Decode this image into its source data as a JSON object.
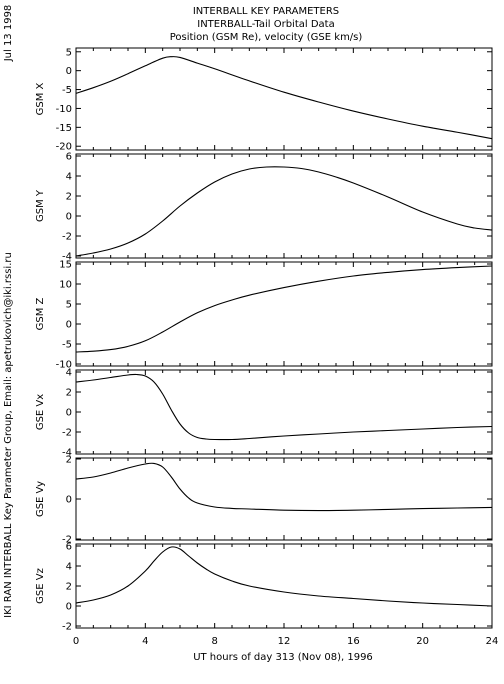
{
  "header": {
    "line1": "INTERBALL KEY PARAMETERS",
    "line2": "INTERBALL-Tail Orbital Data",
    "line3": "Position (GSM Re), velocity (GSE km/s)"
  },
  "side": {
    "date": "Jul 13 1998",
    "credit": "IKI RAN INTERBALL Key Parameter Group, Email: apetrukovich@iki.rssi.ru"
  },
  "x_axis": {
    "label": "UT hours of day 313 (Nov 08), 1996",
    "range": [
      0,
      24
    ],
    "ticks": [
      0,
      4,
      8,
      12,
      16,
      20,
      24
    ],
    "minor_step": 1
  },
  "chart_data": [
    {
      "type": "line",
      "ylabel": "GSM X",
      "ylim": [
        -21,
        6
      ],
      "yticks": [
        5,
        0,
        -5,
        -10,
        -15,
        -20
      ],
      "x": [
        0,
        1,
        2,
        3,
        4,
        5,
        5.5,
        6,
        7,
        8,
        10,
        12,
        14,
        16,
        18,
        20,
        22,
        24
      ],
      "values": [
        -6,
        -4.5,
        -2.8,
        -0.8,
        1.3,
        3.3,
        3.7,
        3.5,
        2,
        0.5,
        -2.7,
        -5.7,
        -8.3,
        -10.7,
        -12.8,
        -14.7,
        -16.3,
        -18
      ]
    },
    {
      "type": "line",
      "ylabel": "GSM Y",
      "ylim": [
        -4.2,
        6.2
      ],
      "yticks": [
        6,
        4,
        2,
        0,
        -2,
        -4
      ],
      "x": [
        0,
        1,
        2,
        3,
        4,
        5,
        6,
        7,
        8,
        9,
        10,
        11,
        12,
        13,
        14,
        15,
        16,
        18,
        20,
        22,
        23,
        24
      ],
      "values": [
        -4,
        -3.7,
        -3.3,
        -2.7,
        -1.8,
        -0.5,
        1,
        2.3,
        3.4,
        4.2,
        4.7,
        4.9,
        4.9,
        4.75,
        4.4,
        3.9,
        3.3,
        1.9,
        0.4,
        -0.8,
        -1.2,
        -1.4
      ]
    },
    {
      "type": "line",
      "ylabel": "GSM Z",
      "ylim": [
        -10.5,
        15.5
      ],
      "yticks": [
        15,
        10,
        5,
        0,
        -5,
        -10
      ],
      "x": [
        0,
        1,
        2,
        3,
        4,
        5,
        6,
        7,
        8,
        9,
        10,
        12,
        14,
        16,
        18,
        20,
        22,
        24
      ],
      "values": [
        -7,
        -6.8,
        -6.4,
        -5.6,
        -4.2,
        -2,
        0.5,
        2.8,
        4.6,
        6,
        7.2,
        9.1,
        10.7,
        12,
        12.9,
        13.6,
        14.1,
        14.5
      ]
    },
    {
      "type": "line",
      "ylabel": "GSE Vx",
      "ylim": [
        -4.2,
        4.2
      ],
      "yticks": [
        4,
        2,
        0,
        -2,
        -4
      ],
      "x": [
        0,
        1,
        2,
        3,
        3.5,
        4,
        4.5,
        5,
        5.5,
        6,
        6.5,
        7,
        7.5,
        8,
        9,
        10,
        12,
        14,
        16,
        18,
        20,
        22,
        24
      ],
      "values": [
        3,
        3.2,
        3.45,
        3.7,
        3.75,
        3.6,
        3,
        1.8,
        0.2,
        -1.2,
        -2.1,
        -2.55,
        -2.7,
        -2.75,
        -2.75,
        -2.65,
        -2.4,
        -2.2,
        -2,
        -1.85,
        -1.7,
        -1.55,
        -1.45
      ]
    },
    {
      "type": "line",
      "ylabel": "GSE Vy",
      "ylim": [
        -2.05,
        2.05
      ],
      "yticks": [
        2,
        0,
        -2
      ],
      "x": [
        0,
        1,
        2,
        3,
        4,
        4.5,
        5,
        5.5,
        6,
        6.5,
        7,
        8,
        9,
        10,
        12,
        14,
        16,
        18,
        20,
        22,
        24
      ],
      "values": [
        1,
        1.1,
        1.3,
        1.55,
        1.75,
        1.78,
        1.6,
        1.1,
        0.5,
        0.05,
        -0.2,
        -0.4,
        -0.47,
        -0.5,
        -0.56,
        -0.58,
        -0.56,
        -0.52,
        -0.48,
        -0.45,
        -0.42
      ]
    },
    {
      "type": "line",
      "ylabel": "GSE Vz",
      "ylim": [
        -2.2,
        6.2
      ],
      "yticks": [
        6,
        4,
        2,
        0,
        -2
      ],
      "x": [
        0,
        1,
        2,
        3,
        4,
        4.5,
        5,
        5.5,
        6,
        6.5,
        7,
        7.5,
        8,
        9,
        10,
        12,
        14,
        16,
        18,
        20,
        22,
        24
      ],
      "values": [
        0.3,
        0.6,
        1.1,
        2,
        3.5,
        4.5,
        5.4,
        5.9,
        5.7,
        5,
        4.3,
        3.7,
        3.2,
        2.5,
        2,
        1.4,
        1,
        0.75,
        0.5,
        0.3,
        0.15,
        0
      ]
    }
  ]
}
